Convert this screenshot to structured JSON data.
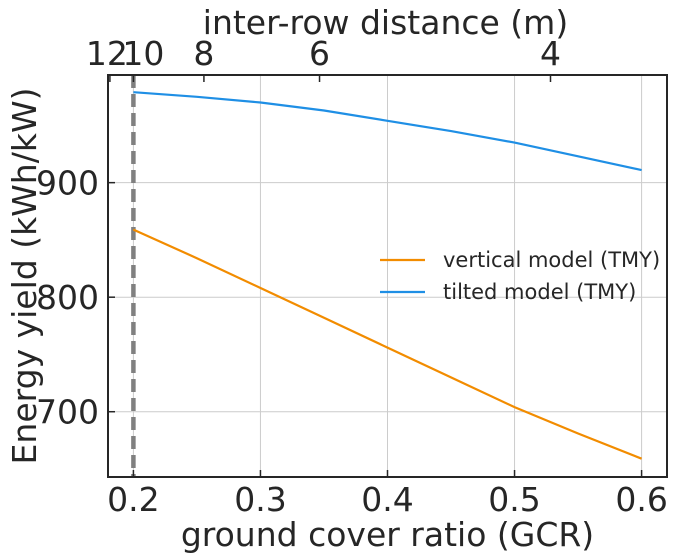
{
  "chart_data": {
    "type": "line",
    "xlabel": "ground cover ratio (GCR)",
    "ylabel": "Energy yield (kWh/kW)",
    "top_xlabel": "inter-row distance (m)",
    "xlim": [
      0.18,
      0.62
    ],
    "ylim": [
      643,
      994
    ],
    "x_ticks": [
      "0.2",
      "0.3",
      "0.4",
      "0.5",
      "0.6"
    ],
    "x_tick_values": [
      0.2,
      0.3,
      0.4,
      0.5,
      0.6
    ],
    "y_ticks": [
      "700",
      "800",
      "900"
    ],
    "y_tick_values": [
      700,
      800,
      900
    ],
    "top_ticks": [
      "12",
      "10",
      "8",
      "6",
      "4"
    ],
    "top_tick_gcr": [
      0.1815,
      0.2,
      0.2555,
      0.3465,
      0.5283
    ],
    "grid": true,
    "legend_position": "center-right",
    "vertical_marker": {
      "x": 0.2,
      "style": "dashed",
      "color": "#808080"
    },
    "series": [
      {
        "name": "vertical model (TMY)",
        "color": "#F28C00",
        "x": [
          0.2,
          0.25,
          0.3,
          0.35,
          0.4,
          0.45,
          0.5,
          0.55,
          0.6
        ],
        "values": [
          859,
          834,
          808,
          782,
          756,
          730,
          704,
          681,
          659
        ]
      },
      {
        "name": "tilted model (TMY)",
        "color": "#1F8FE5",
        "x": [
          0.2,
          0.25,
          0.3,
          0.35,
          0.4,
          0.45,
          0.5,
          0.55,
          0.6
        ],
        "values": [
          979,
          975,
          970,
          963,
          954,
          945,
          935,
          923,
          911
        ]
      }
    ]
  }
}
